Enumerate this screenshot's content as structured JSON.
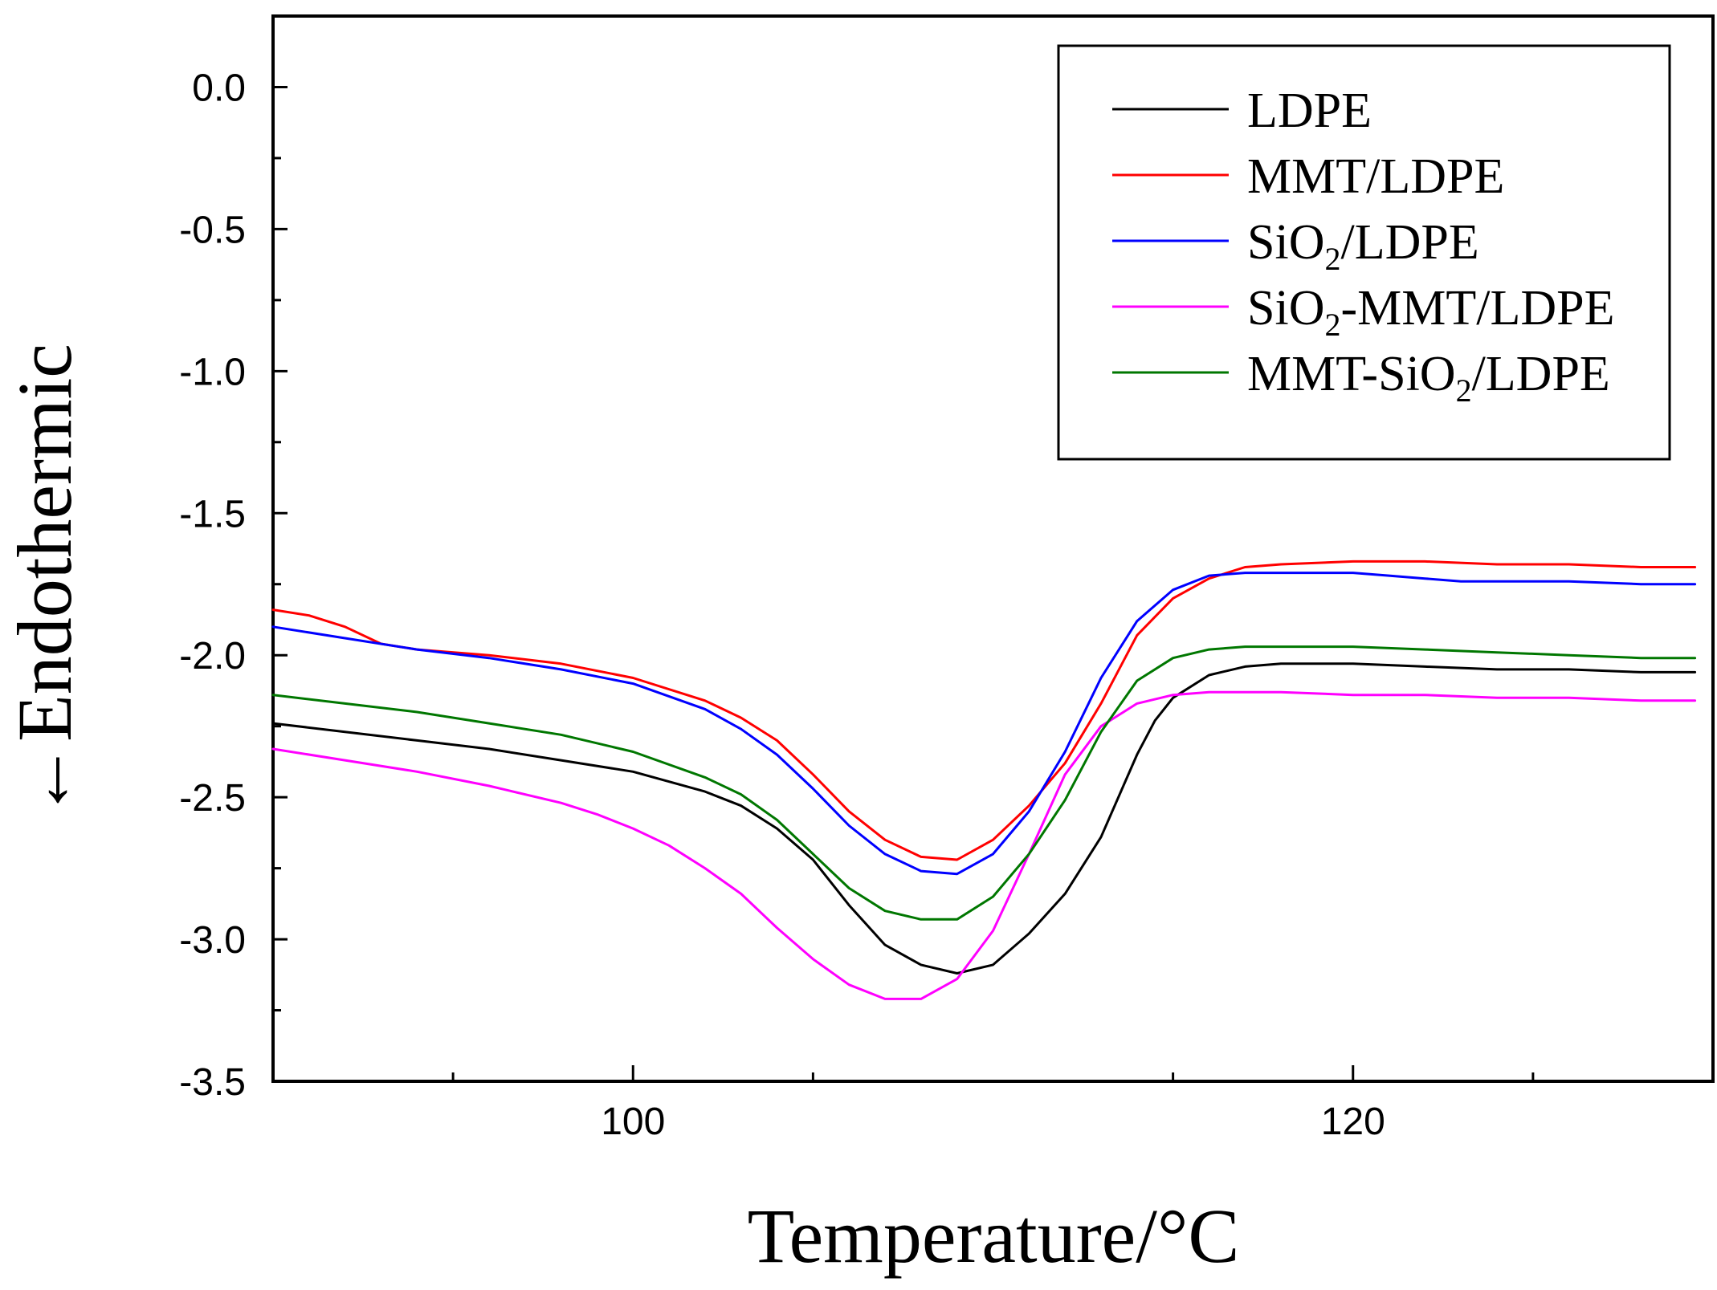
{
  "chart_data": {
    "type": "line",
    "title": "",
    "xlabel": "Temperature/°C",
    "ylabel": "←Endothermic",
    "xlim": [
      90,
      130
    ],
    "ylim": [
      -3.5,
      0.25
    ],
    "xticks": [
      100,
      120
    ],
    "xtick_labels": [
      "100",
      "120"
    ],
    "yticks": [
      0.0,
      -0.5,
      -1.0,
      -1.5,
      -2.0,
      -2.5,
      -3.0,
      -3.5
    ],
    "ytick_labels": [
      "0.0",
      "-0.5",
      "-1.0",
      "-1.5",
      "-2.0",
      "-2.5",
      "-3.0",
      "-3.5"
    ],
    "grid": false,
    "legend_position": "top-right",
    "series": [
      {
        "name": "LDPE",
        "legend_parts": [
          "LDPE"
        ],
        "color": "#000000",
        "points": [
          [
            90,
            -2.24
          ],
          [
            92,
            -2.27
          ],
          [
            94,
            -2.3
          ],
          [
            96,
            -2.33
          ],
          [
            98,
            -2.37
          ],
          [
            100,
            -2.41
          ],
          [
            102,
            -2.48
          ],
          [
            103,
            -2.53
          ],
          [
            104,
            -2.61
          ],
          [
            105,
            -2.72
          ],
          [
            106,
            -2.88
          ],
          [
            107,
            -3.02
          ],
          [
            108,
            -3.09
          ],
          [
            109,
            -3.12
          ],
          [
            110,
            -3.09
          ],
          [
            111,
            -2.98
          ],
          [
            112,
            -2.84
          ],
          [
            113,
            -2.64
          ],
          [
            114,
            -2.35
          ],
          [
            114.5,
            -2.23
          ],
          [
            115,
            -2.15
          ],
          [
            116,
            -2.07
          ],
          [
            117,
            -2.04
          ],
          [
            118,
            -2.03
          ],
          [
            120,
            -2.03
          ],
          [
            122,
            -2.04
          ],
          [
            124,
            -2.05
          ],
          [
            126,
            -2.05
          ],
          [
            128,
            -2.06
          ],
          [
            129.5,
            -2.06
          ]
        ]
      },
      {
        "name": "MMT/LDPE",
        "legend_parts": [
          "MMT/LDPE"
        ],
        "color": "#ff0000",
        "points": [
          [
            90,
            -1.84
          ],
          [
            91,
            -1.86
          ],
          [
            92,
            -1.9
          ],
          [
            93,
            -1.96
          ],
          [
            94,
            -1.98
          ],
          [
            96,
            -2.0
          ],
          [
            98,
            -2.03
          ],
          [
            100,
            -2.08
          ],
          [
            102,
            -2.16
          ],
          [
            103,
            -2.22
          ],
          [
            104,
            -2.3
          ],
          [
            105,
            -2.42
          ],
          [
            106,
            -2.55
          ],
          [
            107,
            -2.65
          ],
          [
            108,
            -2.71
          ],
          [
            109,
            -2.72
          ],
          [
            110,
            -2.65
          ],
          [
            111,
            -2.53
          ],
          [
            112,
            -2.38
          ],
          [
            113,
            -2.17
          ],
          [
            114,
            -1.93
          ],
          [
            115,
            -1.8
          ],
          [
            116,
            -1.73
          ],
          [
            117,
            -1.69
          ],
          [
            118,
            -1.68
          ],
          [
            120,
            -1.67
          ],
          [
            122,
            -1.67
          ],
          [
            124,
            -1.68
          ],
          [
            126,
            -1.68
          ],
          [
            128,
            -1.69
          ],
          [
            129.5,
            -1.69
          ]
        ]
      },
      {
        "name": "SiO2/LDPE",
        "legend_parts": [
          "SiO",
          "2",
          "/LDPE"
        ],
        "color": "#0000ff",
        "points": [
          [
            90,
            -1.9
          ],
          [
            92,
            -1.94
          ],
          [
            94,
            -1.98
          ],
          [
            96,
            -2.01
          ],
          [
            98,
            -2.05
          ],
          [
            100,
            -2.1
          ],
          [
            102,
            -2.19
          ],
          [
            103,
            -2.26
          ],
          [
            104,
            -2.35
          ],
          [
            105,
            -2.47
          ],
          [
            106,
            -2.6
          ],
          [
            107,
            -2.7
          ],
          [
            108,
            -2.76
          ],
          [
            109,
            -2.77
          ],
          [
            110,
            -2.7
          ],
          [
            111,
            -2.55
          ],
          [
            112,
            -2.34
          ],
          [
            113,
            -2.08
          ],
          [
            114,
            -1.88
          ],
          [
            115,
            -1.77
          ],
          [
            116,
            -1.72
          ],
          [
            117,
            -1.71
          ],
          [
            118,
            -1.71
          ],
          [
            120,
            -1.71
          ],
          [
            121,
            -1.72
          ],
          [
            122,
            -1.73
          ],
          [
            123,
            -1.74
          ],
          [
            124,
            -1.74
          ],
          [
            126,
            -1.74
          ],
          [
            128,
            -1.75
          ],
          [
            129.5,
            -1.75
          ]
        ]
      },
      {
        "name": "SiO2-MMT/LDPE",
        "legend_parts": [
          "SiO",
          "2",
          "-MMT/LDPE"
        ],
        "color": "#ff00ff",
        "points": [
          [
            90,
            -2.33
          ],
          [
            92,
            -2.37
          ],
          [
            94,
            -2.41
          ],
          [
            96,
            -2.46
          ],
          [
            98,
            -2.52
          ],
          [
            99,
            -2.56
          ],
          [
            100,
            -2.61
          ],
          [
            101,
            -2.67
          ],
          [
            102,
            -2.75
          ],
          [
            103,
            -2.84
          ],
          [
            104,
            -2.96
          ],
          [
            105,
            -3.07
          ],
          [
            106,
            -3.16
          ],
          [
            107,
            -3.21
          ],
          [
            108,
            -3.21
          ],
          [
            109,
            -3.14
          ],
          [
            110,
            -2.97
          ],
          [
            111,
            -2.7
          ],
          [
            112,
            -2.42
          ],
          [
            113,
            -2.25
          ],
          [
            114,
            -2.17
          ],
          [
            115,
            -2.14
          ],
          [
            116,
            -2.13
          ],
          [
            118,
            -2.13
          ],
          [
            120,
            -2.14
          ],
          [
            122,
            -2.14
          ],
          [
            124,
            -2.15
          ],
          [
            126,
            -2.15
          ],
          [
            128,
            -2.16
          ],
          [
            129.5,
            -2.16
          ]
        ]
      },
      {
        "name": "MMT-SiO2/LDPE",
        "legend_parts": [
          "MMT-SiO",
          "2",
          "/LDPE"
        ],
        "color": "#007700",
        "points": [
          [
            90,
            -2.14
          ],
          [
            92,
            -2.17
          ],
          [
            94,
            -2.2
          ],
          [
            96,
            -2.24
          ],
          [
            98,
            -2.28
          ],
          [
            100,
            -2.34
          ],
          [
            102,
            -2.43
          ],
          [
            103,
            -2.49
          ],
          [
            104,
            -2.58
          ],
          [
            105,
            -2.7
          ],
          [
            106,
            -2.82
          ],
          [
            107,
            -2.9
          ],
          [
            108,
            -2.93
          ],
          [
            109,
            -2.93
          ],
          [
            110,
            -2.85
          ],
          [
            111,
            -2.7
          ],
          [
            112,
            -2.51
          ],
          [
            113,
            -2.27
          ],
          [
            114,
            -2.09
          ],
          [
            115,
            -2.01
          ],
          [
            116,
            -1.98
          ],
          [
            117,
            -1.97
          ],
          [
            118,
            -1.97
          ],
          [
            120,
            -1.97
          ],
          [
            122,
            -1.98
          ],
          [
            124,
            -1.99
          ],
          [
            126,
            -2.0
          ],
          [
            128,
            -2.01
          ],
          [
            129.5,
            -2.01
          ]
        ]
      }
    ]
  }
}
